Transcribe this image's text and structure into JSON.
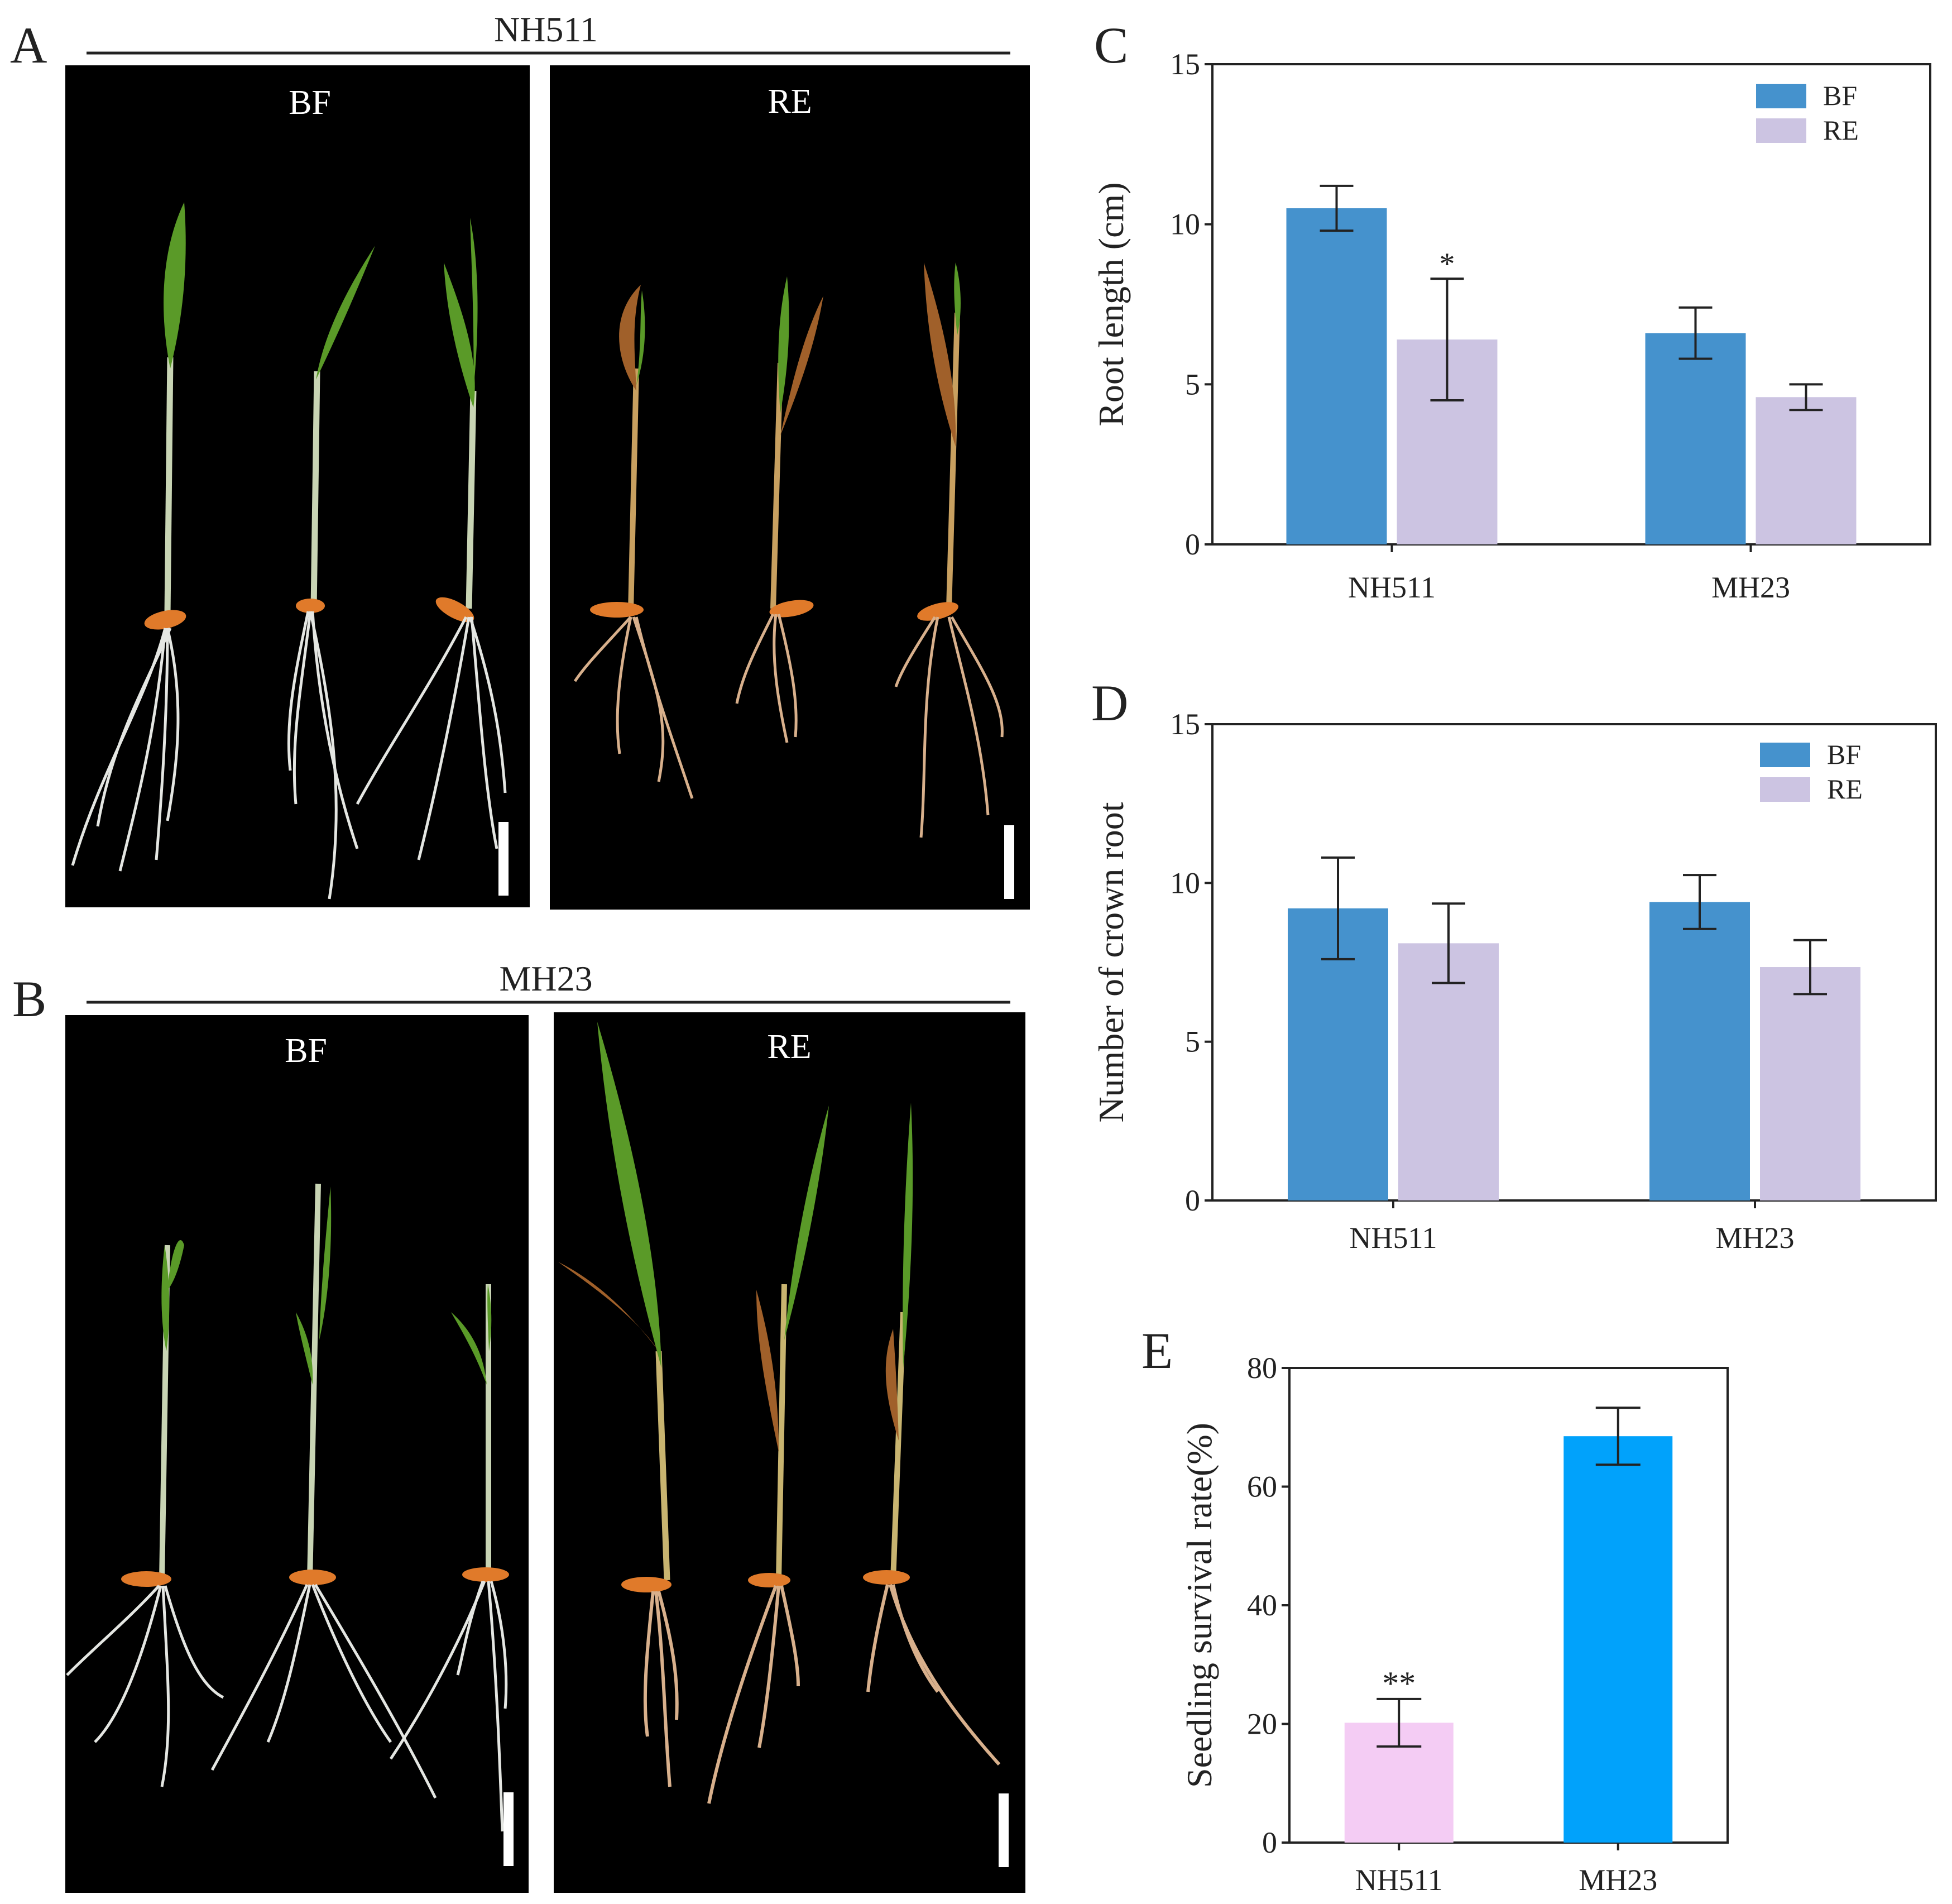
{
  "colors": {
    "bf": "#4592CD",
    "re": "#CCC4E2",
    "nh511_survival": "#F4CCF4",
    "mh23_survival": "#01A2FB",
    "photo_bg": "#000000",
    "leaf_green": "#5A9A28",
    "stem": "#C8D4B4",
    "seed": "#E07A2A",
    "root_white": "#E4E6E2",
    "root_stressed": "#D8B08C",
    "leaf_brown": "#A0602A"
  },
  "panel_a": {
    "letter": "A",
    "cultivar": "NH511",
    "photos": [
      {
        "label": "BF",
        "seedlings": [
          "healthy",
          "healthy",
          "healthy"
        ]
      },
      {
        "label": "RE",
        "seedlings": [
          "stressed",
          "stressed",
          "stressed"
        ]
      }
    ]
  },
  "panel_b": {
    "letter": "B",
    "cultivar": "MH23",
    "photos": [
      {
        "label": "BF",
        "seedlings": [
          "healthy",
          "healthy",
          "healthy"
        ]
      },
      {
        "label": "RE",
        "seedlings": [
          "tall-stressed",
          "tall-stressed",
          "tall-stressed"
        ]
      }
    ]
  },
  "chart_data": [
    {
      "panel": "C",
      "type": "bar",
      "categories": [
        "NH511",
        "MH23"
      ],
      "series": [
        {
          "name": "BF",
          "values": [
            10.5,
            6.6
          ],
          "errors": [
            0.7,
            0.8
          ],
          "sig": [
            "",
            ""
          ]
        },
        {
          "name": "RE",
          "values": [
            6.4,
            4.6
          ],
          "errors": [
            1.9,
            0.4
          ],
          "sig": [
            "*",
            ""
          ]
        }
      ],
      "xlabel": "",
      "ylabel": "Root length (cm)",
      "ylim": [
        0,
        15
      ],
      "yticks": [
        0,
        5,
        10,
        15
      ],
      "legend": "top-right"
    },
    {
      "panel": "D",
      "type": "bar",
      "categories": [
        "NH511",
        "MH23"
      ],
      "series": [
        {
          "name": "BF",
          "values": [
            9.2,
            9.4
          ],
          "errors": [
            1.6,
            0.85
          ],
          "sig": [
            "",
            ""
          ]
        },
        {
          "name": "RE",
          "values": [
            8.1,
            7.35
          ],
          "errors": [
            1.25,
            0.85
          ],
          "sig": [
            "",
            ""
          ]
        }
      ],
      "xlabel": "",
      "ylabel": "Number of crown root",
      "ylim": [
        0,
        15
      ],
      "yticks": [
        0,
        5,
        10,
        15
      ],
      "legend": "top-right"
    },
    {
      "panel": "E",
      "type": "bar",
      "categories": [
        "NH511",
        "MH23"
      ],
      "values": [
        20.2,
        68.5
      ],
      "errors": [
        4.0,
        4.8
      ],
      "sig": [
        "**",
        ""
      ],
      "xlabel": "",
      "ylabel": "Seedling survival rate(%)",
      "ylim": [
        0,
        80
      ],
      "yticks": [
        0,
        20,
        40,
        60,
        80
      ]
    }
  ]
}
